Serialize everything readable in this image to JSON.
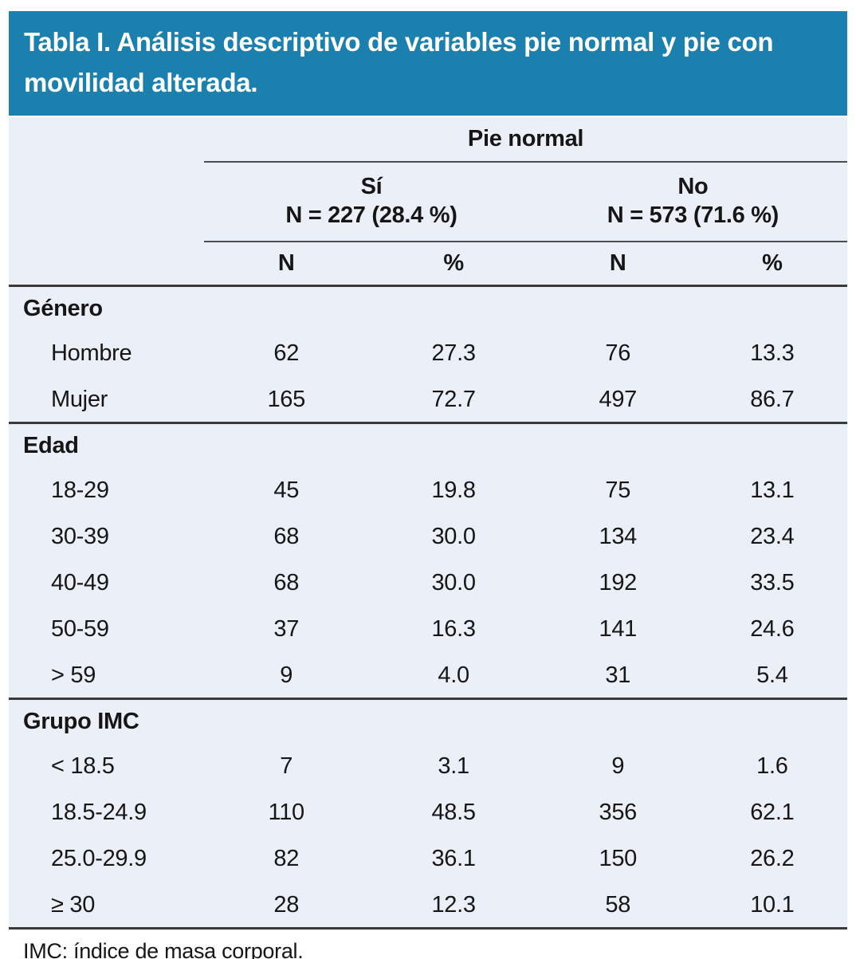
{
  "title": "Tabla I. Análisis descriptivo de variables pie normal y pie con movilidad alterada.",
  "table": {
    "group_header": "Pie normal",
    "subgroups": [
      {
        "label": "Sí",
        "n_label": "N = 227 (28.4 %)"
      },
      {
        "label": "No",
        "n_label": "N = 573 (71.6 %)"
      }
    ],
    "col_headers": [
      "N",
      "%",
      "N",
      "%"
    ],
    "sections": [
      {
        "name": "Género",
        "rows": [
          {
            "label": "Hombre",
            "values": [
              "62",
              "27.3",
              "76",
              "13.3"
            ]
          },
          {
            "label": "Mujer",
            "values": [
              "165",
              "72.7",
              "497",
              "86.7"
            ]
          }
        ]
      },
      {
        "name": "Edad",
        "rows": [
          {
            "label": "18-29",
            "values": [
              "45",
              "19.8",
              "75",
              "13.1"
            ]
          },
          {
            "label": "30-39",
            "values": [
              "68",
              "30.0",
              "134",
              "23.4"
            ]
          },
          {
            "label": "40-49",
            "values": [
              "68",
              "30.0",
              "192",
              "33.5"
            ]
          },
          {
            "label": "50-59",
            "values": [
              "37",
              "16.3",
              "141",
              "24.6"
            ]
          },
          {
            "label": "> 59",
            "values": [
              "9",
              "4.0",
              "31",
              "5.4"
            ]
          }
        ]
      },
      {
        "name": "Grupo IMC",
        "rows": [
          {
            "label": "< 18.5",
            "values": [
              "7",
              "3.1",
              "9",
              "1.6"
            ]
          },
          {
            "label": "18.5-24.9",
            "values": [
              "110",
              "48.5",
              "356",
              "62.1"
            ]
          },
          {
            "label": "25.0-29.9",
            "values": [
              "82",
              "36.1",
              "150",
              "26.2"
            ]
          },
          {
            "label": "≥ 30",
            "values": [
              "28",
              "12.3",
              "58",
              "10.1"
            ]
          }
        ]
      }
    ],
    "footnote": "IMC: índice de masa corporal."
  },
  "colors": {
    "header_bg": "#1b80ad",
    "body_bg": "#ebf0f8",
    "rule_thin": "#4c4c4c",
    "rule_thick": "#3a3a3a",
    "text": "#161616"
  }
}
